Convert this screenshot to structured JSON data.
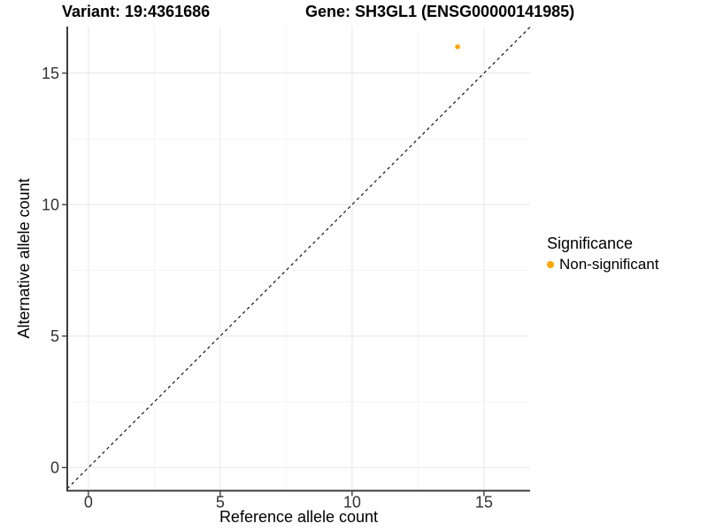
{
  "chart_data": {
    "type": "scatter",
    "titles": {
      "left": "Variant: 19:4361686",
      "right": "Gene: SH3GL1 (ENSG00000141985)"
    },
    "xlabel": "Reference allele count",
    "ylabel": "Alternative allele count",
    "xlim": [
      -0.8,
      16.75
    ],
    "ylim": [
      -0.88,
      16.77
    ],
    "xticks": [
      0,
      5,
      10,
      15
    ],
    "yticks": [
      0,
      5,
      10,
      15
    ],
    "minor_gridlines_x": [
      2.5,
      7.5,
      12.5
    ],
    "minor_gridlines_y": [
      2.5,
      7.5,
      12.5
    ],
    "grid": "major+minor",
    "identity_line": {
      "slope": 1,
      "intercept": 0,
      "style": "dashed",
      "color": "#000000"
    },
    "series": [
      {
        "name": "Non-significant",
        "color": "#FFA500",
        "points": [
          {
            "x": 14,
            "y": 16
          }
        ]
      }
    ],
    "legend": {
      "title": "Significance",
      "position": "right",
      "items": [
        {
          "label": "Non-significant",
          "color": "#FFA500"
        }
      ]
    }
  },
  "colors": {
    "background": "#FFFFFF",
    "grid_major": "#E9E9E9",
    "grid_minor": "#F3F3F3",
    "axis_line": "#3C3C3C",
    "tick_mark": "#333333",
    "tick_label": "#333333",
    "text": "#000000",
    "point": "#FFA500"
  }
}
